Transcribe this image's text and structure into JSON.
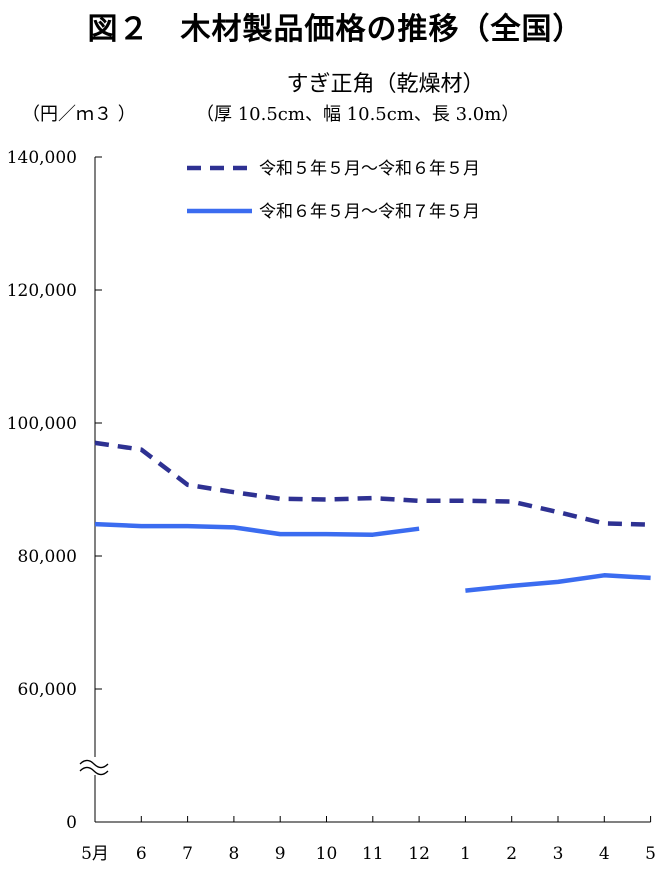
{
  "title": "図２　木材製品価格の推移（全国）",
  "subtitle": "すぎ正角（乾燥材）",
  "unit": "（円／ｍ３ ）",
  "spec": "（厚 10.5cm、幅 10.5cm、長 3.0m）",
  "chart_data": {
    "type": "line",
    "categories": [
      "5月",
      "6",
      "7",
      "8",
      "9",
      "10",
      "11",
      "12",
      "1",
      "2",
      "3",
      "4",
      "5"
    ],
    "y_tick_labels": [
      "140,000",
      "120,000",
      "100,000",
      "80,000",
      "60,000",
      "0"
    ],
    "ylim": [
      0,
      140000
    ],
    "axis_break": true,
    "grid": false,
    "legend_position": "top",
    "series": [
      {
        "name": "令和５年５月～令和６年５月",
        "style": "dashed",
        "color": "#2e3192",
        "values": [
          97000,
          96000,
          90700,
          89600,
          88600,
          88500,
          88700,
          88300,
          88300,
          88200,
          86600,
          84900,
          84700
        ]
      },
      {
        "name": "令和６年５月～令和７年５月",
        "style": "solid",
        "color": "#3b6cf0",
        "values": [
          84800,
          84500,
          84500,
          84300,
          83300,
          83300,
          83200,
          84100,
          74800,
          75500,
          76100,
          77100,
          76700
        ],
        "gap_after_index": 7
      }
    ]
  }
}
